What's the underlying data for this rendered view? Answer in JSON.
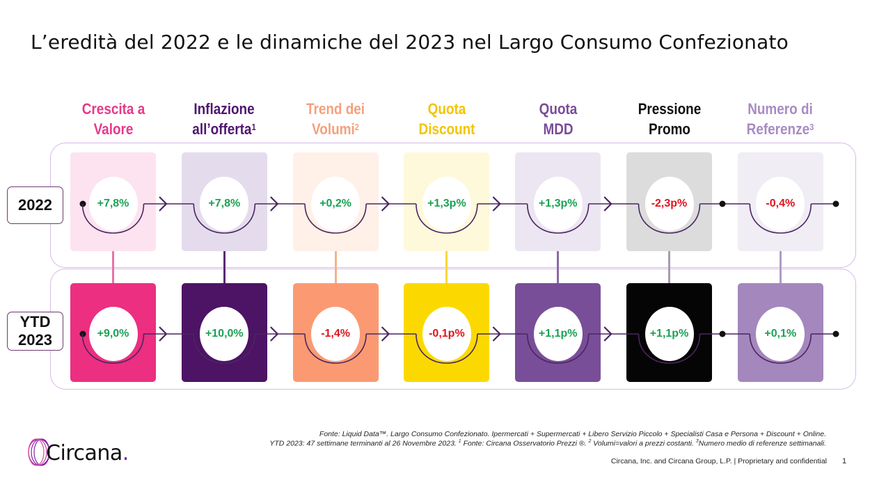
{
  "title": "L’eredità del 2022 e le dinamiche del 2023 nel Largo Consumo Confezionato",
  "columns": [
    {
      "line1": "Crescita a",
      "line2": "Valore",
      "sup": "",
      "color": "#e63a8a",
      "tile_2022": "#fde3ef",
      "tile_2023": "#ec2f80",
      "connector": "#e673a8",
      "val_2022": "+7,8%",
      "val_2023": "+9,0%"
    },
    {
      "line1": "Inflazione",
      "line2": "all’offerta",
      "sup": "1",
      "color": "#4f1770",
      "tile_2022": "#e4dcec",
      "tile_2023": "#4d1365",
      "connector": "#5a2a72",
      "val_2022": "+7,8%",
      "val_2023": "+10,0%"
    },
    {
      "line1": "Trend dei",
      "line2": "Volumi",
      "sup": "2",
      "color": "#f4a17c",
      "tile_2022": "#fff0e8",
      "tile_2023": "#fb9a72",
      "connector": "#f8b08c",
      "val_2022": "+0,2%",
      "val_2023": "-1,4%"
    },
    {
      "line1": "Quota",
      "line2": "Discount",
      "sup": "",
      "color": "#f2c500",
      "tile_2022": "#fff9db",
      "tile_2023": "#fbd900",
      "connector": "#f7d63c",
      "val_2022": "+1,3p%",
      "val_2023": "-0,1p%"
    },
    {
      "line1": "Quota",
      "line2": "MDD",
      "sup": "",
      "color": "#7b4c98",
      "tile_2022": "#ece6f2",
      "tile_2023": "#794e98",
      "connector": "#8c6aa6",
      "val_2022": "+1,3p%",
      "val_2023": "+1,1p%"
    },
    {
      "line1": "Pressione",
      "line2": "Promo",
      "sup": "",
      "color": "#111111",
      "tile_2022": "#dcdcdc",
      "tile_2023": "#050505",
      "connector": "#a89ab0",
      "val_2022": "-2,3p%",
      "val_2023": "+1,1p%"
    },
    {
      "line1": "Numero di",
      "line2": "Referenze",
      "sup": "3",
      "color": "#a98bc4",
      "tile_2022": "#f0edf4",
      "tile_2023": "#a487bd",
      "connector": "#b09ac4",
      "val_2022": "-0,4%",
      "val_2023": "+0,1%"
    }
  ],
  "rows": {
    "label_2022": "2022",
    "label_ytd_line1": "YTD",
    "label_ytd_line2": "2023"
  },
  "colors": {
    "positive": "#1aa253",
    "negative": "#e0141c",
    "frame": "#d8b8ea",
    "arc": "#4a2660"
  },
  "footer": {
    "source_line1": "Fonte: Liquid Data™. Largo Consumo Confezionato. Ipermercati + Supermercati + Libero Servizio Piccolo + Specialisti Casa e Persona + Discount + Online.",
    "source_line2_a": "YTD 2023: 47 settimane terminanti al 26 Novembre 2023. ",
    "source_line2_sup1": "1",
    "source_line2_b": " Fonte: Circana Osservatorio Prezzi ®. ",
    "source_line2_sup2": "2",
    "source_line2_c": " Volumi=valori a prezzi costanti. ",
    "source_line2_sup3": "3",
    "source_line2_d": "Numero medio di referenze settimanali.",
    "confidential": "Circana, Inc. and Circana Group, L.P. |  Proprietary and confidential",
    "page_number": "1",
    "logo_text": "Circana",
    "logo_dot": "."
  }
}
